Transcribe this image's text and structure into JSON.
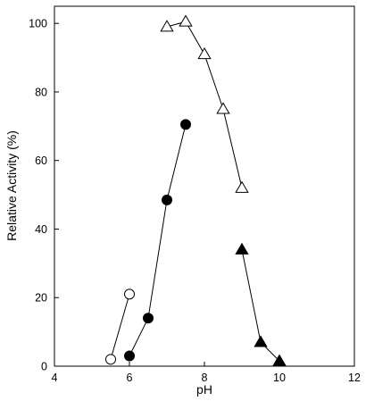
{
  "chart_data": {
    "type": "line",
    "xlabel": "pH",
    "ylabel": "Relative Activity (%)",
    "xlim": [
      4,
      12
    ],
    "ylim": [
      0,
      105
    ],
    "xticks": [
      4,
      6,
      8,
      10,
      12
    ],
    "yticks": [
      0,
      20,
      40,
      60,
      80,
      100
    ],
    "grid": false,
    "series": [
      {
        "marker": "circle",
        "fill": "open",
        "x": [
          5.5,
          6.0
        ],
        "y": [
          2,
          21
        ]
      },
      {
        "marker": "circle",
        "fill": "filled",
        "x": [
          6.0,
          6.5,
          7.0,
          7.5
        ],
        "y": [
          3,
          14,
          48.5,
          70.5
        ]
      },
      {
        "marker": "triangle",
        "fill": "open",
        "x": [
          7.0,
          7.5,
          8.0,
          8.5,
          9.0
        ],
        "y": [
          99,
          100.5,
          91,
          75,
          52
        ]
      },
      {
        "marker": "triangle",
        "fill": "filled",
        "x": [
          9.0,
          9.5,
          10.0
        ],
        "y": [
          34,
          7,
          1.5
        ]
      }
    ]
  }
}
